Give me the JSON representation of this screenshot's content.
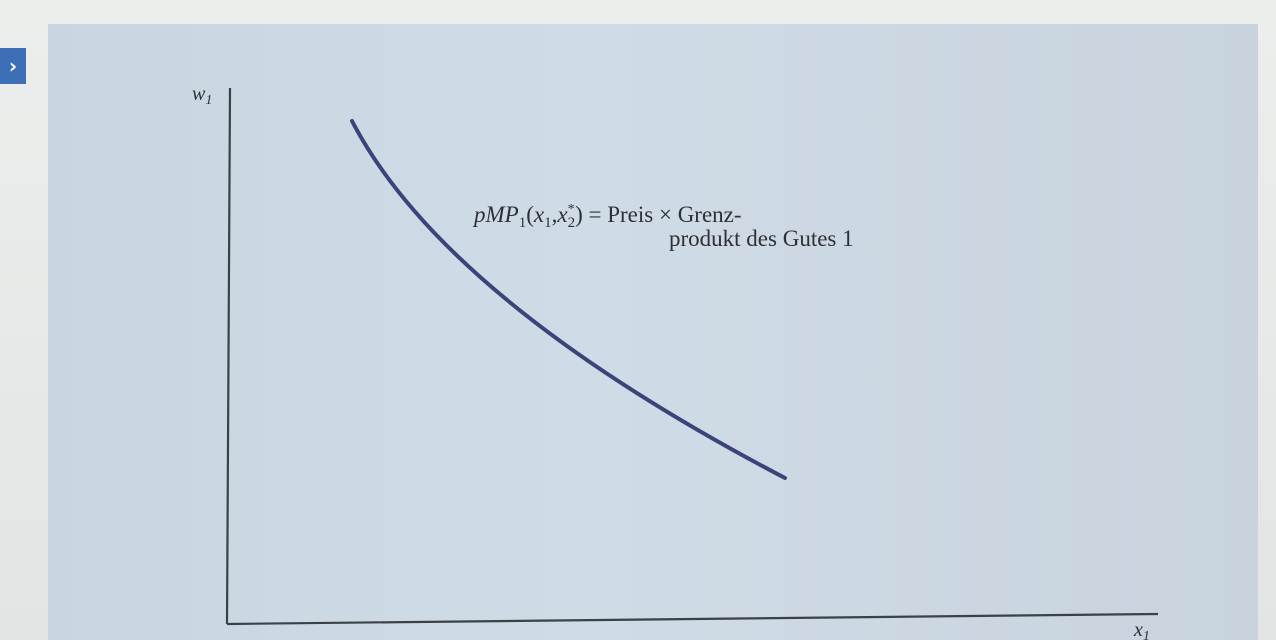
{
  "marker": {
    "glyph": "›"
  },
  "axes": {
    "y_label": "w",
    "y_sub": "1",
    "x_label": "x",
    "x_sub": "1"
  },
  "curve_label": {
    "p": "p",
    "mp": "MP",
    "mp_sub": "1",
    "open": "(",
    "x1": "x",
    "x1_sub": "1",
    "comma": ",",
    "x2": "x",
    "x2_sup": "*",
    "x2_sub": "2",
    "close": ")",
    "equals": " = Preis × Grenz-",
    "line2": "produkt des Gutes 1"
  },
  "colors": {
    "curve": "#39457a",
    "axis": "#3c4148",
    "panel": "#cfdbe6",
    "marker": "#3d6fb6"
  }
}
